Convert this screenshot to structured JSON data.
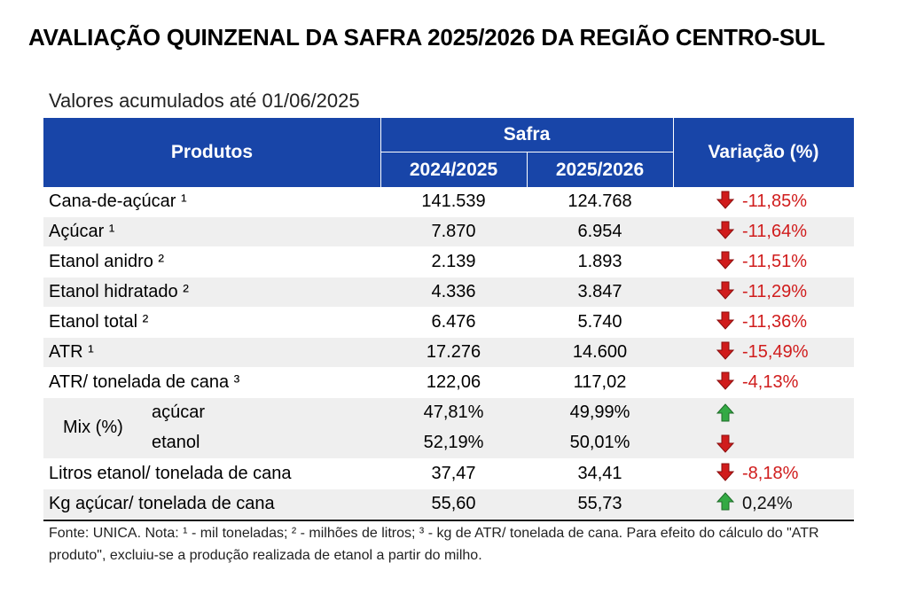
{
  "title": "AVALIAÇÃO QUINZENAL DA SAFRA 2025/2026 DA REGIÃO CENTRO-SUL",
  "subtitle": "Valores acumulados até 01/06/2025",
  "colors": {
    "header_bg": "#1845a8",
    "down": "#d01c1c",
    "up": "#33aa44",
    "shade": "#efefef"
  },
  "header": {
    "produtos": "Produtos",
    "safra": "Safra",
    "col_prev": "2024/2025",
    "col_curr": "2025/2026",
    "variacao": "Variação (%)"
  },
  "rows": [
    {
      "label": "Cana-de-açúcar ¹",
      "prev": "141.539",
      "curr": "124.768",
      "arrow": "down-arrow-icon",
      "var": "-11,85%"
    },
    {
      "label": "Açúcar ¹",
      "prev": "7.870",
      "curr": "6.954",
      "arrow": "down-arrow-icon",
      "var": "-11,64%"
    },
    {
      "label": "Etanol anidro ²",
      "prev": "2.139",
      "curr": "1.893",
      "arrow": "down-arrow-icon",
      "var": "-11,51%"
    },
    {
      "label": "Etanol hidratado ²",
      "prev": "4.336",
      "curr": "3.847",
      "arrow": "down-arrow-icon",
      "var": "-11,29%"
    },
    {
      "label": "Etanol total ²",
      "prev": "6.476",
      "curr": "5.740",
      "arrow": "down-arrow-icon",
      "var": "-11,36%"
    },
    {
      "label": "ATR ¹",
      "prev": "17.276",
      "curr": "14.600",
      "arrow": "down-arrow-icon",
      "var": "-15,49%"
    },
    {
      "label": "ATR/ tonelada de cana ³",
      "prev": "122,06",
      "curr": "117,02",
      "arrow": "down-arrow-icon",
      "var": "-4,13%"
    }
  ],
  "mix": {
    "label": "Mix (%)",
    "acucar": {
      "label": "açúcar",
      "prev": "47,81%",
      "curr": "49,99%",
      "arrow": "up-arrow-icon"
    },
    "etanol": {
      "label": "etanol",
      "prev": "52,19%",
      "curr": "50,01%",
      "arrow": "down-arrow-icon"
    }
  },
  "rows_after": [
    {
      "label": "Litros etanol/ tonelada de cana",
      "prev": "37,47",
      "curr": "34,41",
      "arrow": "down-arrow-icon",
      "var": "-8,18%"
    },
    {
      "label": "Kg açúcar/ tonelada de cana",
      "prev": "55,60",
      "curr": "55,73",
      "arrow": "up-arrow-icon",
      "var": "0,24%"
    }
  ],
  "footnote": "Fonte: UNICA. Nota: ¹ - mil toneladas; ² - milhões de litros; ³ - kg de ATR/ tonelada de cana. Para efeito do cálculo do \"ATR produto\", excluiu-se a produção realizada de etanol a partir do milho."
}
